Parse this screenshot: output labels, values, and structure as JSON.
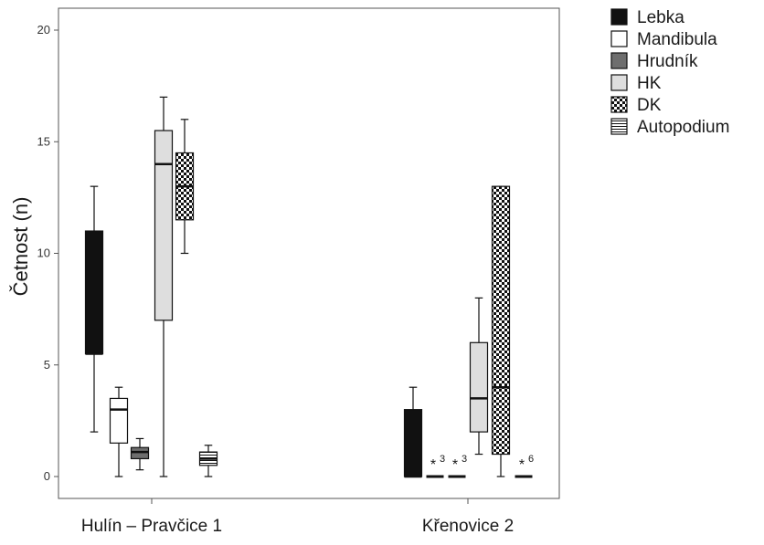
{
  "chart_data": {
    "type": "boxplot",
    "ylabel": "Četnost (n)",
    "xlabel": "",
    "ylim": [
      -1,
      20.8
    ],
    "yticks": [
      0,
      5,
      10,
      15,
      20
    ],
    "categories": [
      "Hulín – Pravčice 1",
      "Křenovice 2"
    ],
    "legend": {
      "position": "right"
    },
    "series": [
      {
        "name": "Lebka",
        "pattern": "solid-black",
        "boxes": [
          {
            "whisker_low": 2,
            "q1": 5.5,
            "median": 5.5,
            "q3": 11,
            "whisker_high": 13
          },
          {
            "whisker_low": 0,
            "q1": 0,
            "median": 0,
            "q3": 3,
            "whisker_high": 4
          }
        ]
      },
      {
        "name": "Mandibula",
        "pattern": "white",
        "boxes": [
          {
            "whisker_low": 0,
            "q1": 1.5,
            "median": 3,
            "q3": 3.5,
            "whisker_high": 4
          },
          {
            "whisker_low": 0,
            "q1": 0,
            "median": 0,
            "q3": 0,
            "whisker_high": 0,
            "outlier_label": "3"
          }
        ]
      },
      {
        "name": "Hrudník",
        "pattern": "dark-gray",
        "boxes": [
          {
            "whisker_low": 0.3,
            "q1": 0.8,
            "median": 1.1,
            "q3": 1.3,
            "whisker_high": 1.7
          },
          {
            "whisker_low": 0,
            "q1": 0,
            "median": 0,
            "q3": 0,
            "whisker_high": 0,
            "outlier_label": "3"
          }
        ]
      },
      {
        "name": "HK",
        "pattern": "light-gray",
        "boxes": [
          {
            "whisker_low": 0,
            "q1": 7,
            "median": 14,
            "q3": 15.5,
            "whisker_high": 17
          },
          {
            "whisker_low": 1,
            "q1": 2,
            "median": 3.5,
            "q3": 6,
            "whisker_high": 8
          }
        ]
      },
      {
        "name": "DK",
        "pattern": "checker",
        "boxes": [
          {
            "whisker_low": 10,
            "q1": 11.5,
            "median": 13,
            "q3": 14.5,
            "whisker_high": 16
          },
          {
            "whisker_low": 0,
            "q1": 1,
            "median": 4,
            "q3": 13,
            "whisker_high": 13
          }
        ]
      },
      {
        "name": "Autopodium",
        "pattern": "horizontal-lines",
        "boxes": [
          {
            "whisker_low": 0,
            "q1": 0.5,
            "median": 0.8,
            "q3": 1.1,
            "whisker_high": 1.4
          },
          {
            "whisker_low": 0,
            "q1": 0,
            "median": 0,
            "q3": 0,
            "whisker_high": 0,
            "outlier_label": "6"
          }
        ]
      }
    ]
  }
}
